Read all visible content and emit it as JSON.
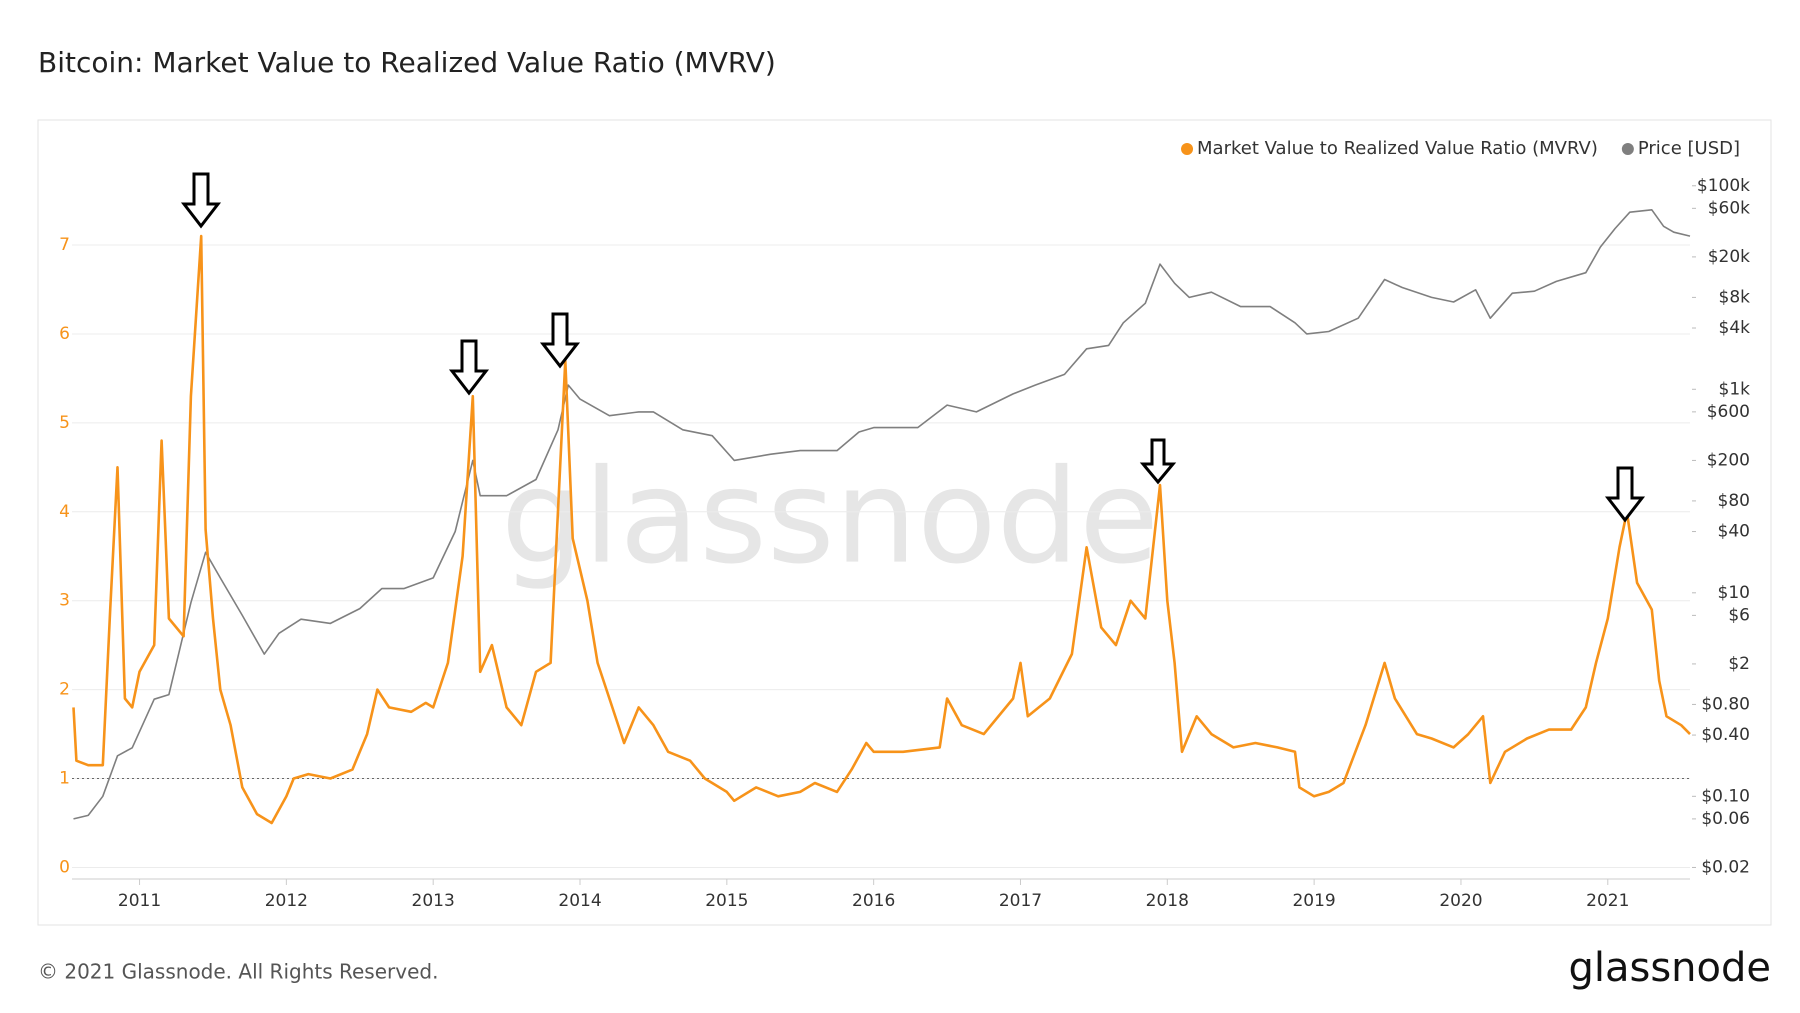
{
  "chart_data": {
    "type": "line",
    "title": "Bitcoin: Market Value to Realized Value Ratio (MVRV)",
    "watermark": "glassnode",
    "footer": "© 2021 Glassnode. All Rights Reserved.",
    "logo": "glassnode",
    "legend_position": "top-right",
    "grid": true,
    "reference_line": 1,
    "xlim": [
      2010.54,
      2021.56
    ],
    "xticks": [
      2011,
      2012,
      2013,
      2014,
      2015,
      2016,
      2017,
      2018,
      2019,
      2020,
      2021
    ],
    "ylim": [
      -0.13,
      7.9
    ],
    "yticks": [
      0,
      1,
      2,
      3,
      4,
      5,
      6,
      7
    ],
    "y2_log": true,
    "y2lim": [
      0.0154,
      160000
    ],
    "y2ticks": [
      {
        "value": 0.02,
        "label": "$0.02"
      },
      {
        "value": 0.06,
        "label": "$0.06"
      },
      {
        "value": 0.1,
        "label": "$0.10"
      },
      {
        "value": 0.4,
        "label": "$0.40"
      },
      {
        "value": 0.8,
        "label": "$0.80"
      },
      {
        "value": 2,
        "label": "$2"
      },
      {
        "value": 6,
        "label": "$6"
      },
      {
        "value": 10,
        "label": "$10"
      },
      {
        "value": 40,
        "label": "$40"
      },
      {
        "value": 80,
        "label": "$80"
      },
      {
        "value": 200,
        "label": "$200"
      },
      {
        "value": 600,
        "label": "$600"
      },
      {
        "value": 1000,
        "label": "$1k"
      },
      {
        "value": 4000,
        "label": "$4k"
      },
      {
        "value": 8000,
        "label": "$8k"
      },
      {
        "value": 20000,
        "label": "$20k"
      },
      {
        "value": 60000,
        "label": "$60k"
      },
      {
        "value": 100000,
        "label": "$100k"
      }
    ],
    "series": [
      {
        "name": "Market Value to Realized Value Ratio (MVRV)",
        "color": "#f7931a",
        "axis": "y",
        "x": [
          2010.55,
          2010.57,
          2010.65,
          2010.75,
          2010.8,
          2010.85,
          2010.9,
          2010.95,
          2011.0,
          2011.1,
          2011.15,
          2011.2,
          2011.3,
          2011.35,
          2011.42,
          2011.45,
          2011.5,
          2011.55,
          2011.62,
          2011.7,
          2011.8,
          2011.9,
          2012.0,
          2012.05,
          2012.15,
          2012.3,
          2012.45,
          2012.55,
          2012.62,
          2012.7,
          2012.85,
          2012.95,
          2013.0,
          2013.1,
          2013.2,
          2013.27,
          2013.32,
          2013.4,
          2013.5,
          2013.6,
          2013.7,
          2013.8,
          2013.9,
          2013.95,
          2014.05,
          2014.12,
          2014.2,
          2014.3,
          2014.4,
          2014.5,
          2014.6,
          2014.75,
          2014.85,
          2015.0,
          2015.05,
          2015.2,
          2015.35,
          2015.5,
          2015.6,
          2015.75,
          2015.85,
          2015.95,
          2016.0,
          2016.2,
          2016.45,
          2016.5,
          2016.6,
          2016.75,
          2016.95,
          2017.0,
          2017.05,
          2017.2,
          2017.35,
          2017.45,
          2017.55,
          2017.65,
          2017.75,
          2017.85,
          2017.95,
          2018.0,
          2018.05,
          2018.1,
          2018.2,
          2018.3,
          2018.45,
          2018.6,
          2018.75,
          2018.87,
          2018.9,
          2019.0,
          2019.1,
          2019.2,
          2019.35,
          2019.48,
          2019.55,
          2019.7,
          2019.8,
          2019.95,
          2020.05,
          2020.15,
          2020.2,
          2020.3,
          2020.45,
          2020.6,
          2020.75,
          2020.85,
          2020.92,
          2021.0,
          2021.08,
          2021.13,
          2021.2,
          2021.3,
          2021.35,
          2021.4,
          2021.5,
          2021.56
        ],
        "values": [
          1.8,
          1.2,
          1.15,
          1.15,
          2.9,
          4.5,
          1.9,
          1.8,
          2.2,
          2.5,
          4.8,
          2.8,
          2.6,
          5.3,
          7.1,
          3.8,
          2.8,
          2.0,
          1.6,
          0.9,
          0.6,
          0.5,
          0.8,
          1.0,
          1.05,
          1.0,
          1.1,
          1.5,
          2.0,
          1.8,
          1.75,
          1.85,
          1.8,
          2.3,
          3.5,
          5.3,
          2.2,
          2.5,
          1.8,
          1.6,
          2.2,
          2.3,
          5.7,
          3.7,
          3.0,
          2.3,
          1.9,
          1.4,
          1.8,
          1.6,
          1.3,
          1.2,
          1.0,
          0.85,
          0.75,
          0.9,
          0.8,
          0.85,
          0.95,
          0.85,
          1.1,
          1.4,
          1.3,
          1.3,
          1.35,
          1.9,
          1.6,
          1.5,
          1.9,
          2.3,
          1.7,
          1.9,
          2.4,
          3.6,
          2.7,
          2.5,
          3.0,
          2.8,
          4.3,
          3.0,
          2.3,
          1.3,
          1.7,
          1.5,
          1.35,
          1.4,
          1.35,
          1.3,
          0.9,
          0.8,
          0.85,
          0.95,
          1.6,
          2.3,
          1.9,
          1.5,
          1.45,
          1.35,
          1.5,
          1.7,
          0.95,
          1.3,
          1.45,
          1.55,
          1.55,
          1.8,
          2.3,
          2.8,
          3.6,
          4.0,
          3.2,
          2.9,
          2.1,
          1.7,
          1.6,
          1.5
        ]
      },
      {
        "name": "Price [USD]",
        "color": "#7f7f7f",
        "axis": "y2",
        "x": [
          2010.55,
          2010.65,
          2010.75,
          2010.85,
          2010.95,
          2011.1,
          2011.2,
          2011.35,
          2011.45,
          2011.55,
          2011.7,
          2011.85,
          2011.95,
          2012.1,
          2012.3,
          2012.5,
          2012.65,
          2012.8,
          2013.0,
          2013.15,
          2013.27,
          2013.32,
          2013.5,
          2013.7,
          2013.85,
          2013.92,
          2014.0,
          2014.2,
          2014.4,
          2014.5,
          2014.7,
          2014.9,
          2015.05,
          2015.3,
          2015.5,
          2015.75,
          2015.9,
          2016.0,
          2016.3,
          2016.5,
          2016.7,
          2016.95,
          2017.1,
          2017.3,
          2017.45,
          2017.6,
          2017.7,
          2017.85,
          2017.95,
          2018.05,
          2018.15,
          2018.3,
          2018.5,
          2018.7,
          2018.87,
          2018.95,
          2019.1,
          2019.3,
          2019.48,
          2019.6,
          2019.8,
          2019.95,
          2020.1,
          2020.2,
          2020.35,
          2020.5,
          2020.65,
          2020.85,
          2020.95,
          2021.05,
          2021.15,
          2021.3,
          2021.38,
          2021.45,
          2021.56
        ],
        "values": [
          0.06,
          0.065,
          0.1,
          0.25,
          0.3,
          0.9,
          1,
          8,
          25,
          14,
          6,
          2.5,
          4,
          5.5,
          5,
          7,
          11,
          11,
          14,
          40,
          200,
          90,
          90,
          130,
          400,
          1100,
          800,
          550,
          600,
          600,
          400,
          350,
          200,
          230,
          250,
          250,
          380,
          420,
          420,
          700,
          600,
          900,
          1100,
          1400,
          2500,
          2700,
          4500,
          7000,
          17000,
          11000,
          8000,
          9000,
          6500,
          6500,
          4500,
          3500,
          3700,
          5000,
          12000,
          10000,
          8000,
          7200,
          9500,
          5000,
          8800,
          9200,
          11500,
          14000,
          25000,
          38000,
          55000,
          58000,
          40000,
          35000,
          32000
        ]
      }
    ]
  }
}
